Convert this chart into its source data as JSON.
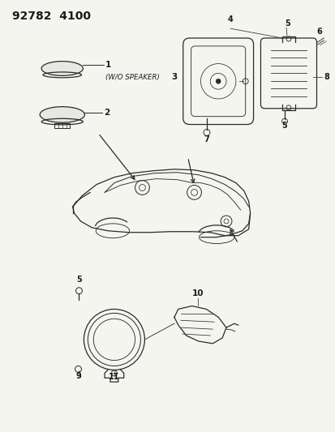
{
  "title": "92782  4100",
  "bg_color": "#f5f5f0",
  "line_color": "#2a2a2a",
  "text_color": "#1a1a1a",
  "title_fontsize": 10,
  "wo_speaker_text": "(W/O SPEAKER)",
  "fig_w": 4.14,
  "fig_h": 5.33,
  "dpi": 100
}
